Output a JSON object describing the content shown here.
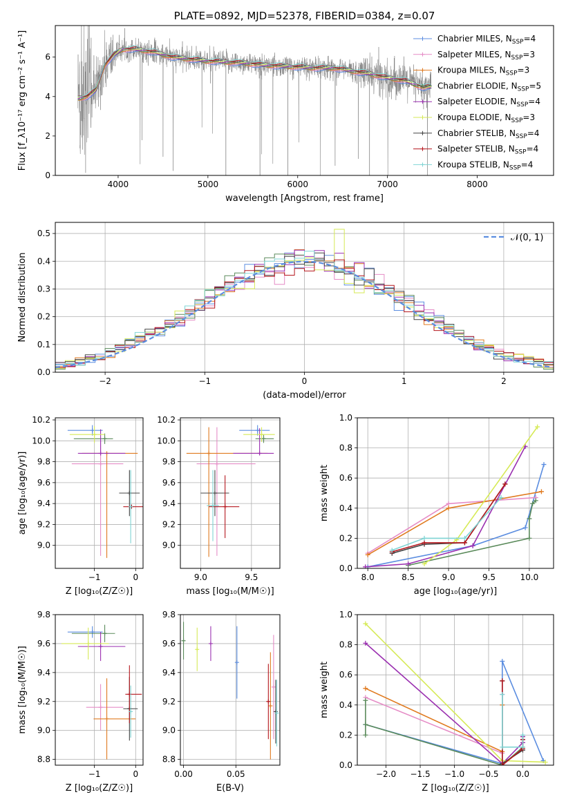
{
  "colors": {
    "Chabrier MILES": "#5b8de0",
    "Salpeter MILES": "#e58cc6",
    "Kroupa MILES": "#e07a1f",
    "Chabrier ELODIE": "#5a8a5a",
    "Salpeter ELODIE": "#9a2fb0",
    "Kroupa ELODIE": "#d6ea56",
    "Chabrier STELIB": "#444444",
    "Salpeter STELIB": "#b5161d",
    "Kroupa STELIB": "#7fd4d4",
    "observed": "#808080",
    "normal": "#5b8de0"
  },
  "chart_data": [
    {
      "panel": "spectrum",
      "type": "line",
      "title": "PLATE=0892, MJD=52378, FIBERID=0384, z=0.07",
      "xlabel": "wavelength [Angstrom, rest frame]",
      "ylabel": "Flux [f_λ10⁻¹⁷ erg cm⁻² s⁻¹ A⁻¹]",
      "xlim": [
        3300,
        8850
      ],
      "ylim": [
        0,
        7.6
      ],
      "xticks": [
        "4000",
        "5000",
        "6000",
        "7000",
        "8000"
      ],
      "yticks": [
        "0",
        "2",
        "4",
        "6"
      ],
      "grid": false,
      "legend_position": "upper right",
      "legend": [
        {
          "label": "Chabrier MILES, N",
          "sub": "SSP",
          "tail": "=4"
        },
        {
          "label": "Salpeter MILES, N",
          "sub": "SSP",
          "tail": "=3"
        },
        {
          "label": "Kroupa MILES, N",
          "sub": "SSP",
          "tail": "=3"
        },
        {
          "label": "Chabrier ELODIE, N",
          "sub": "SSP",
          "tail": "=5"
        },
        {
          "label": "Salpeter ELODIE, N",
          "sub": "SSP",
          "tail": "=4"
        },
        {
          "label": "Kroupa ELODIE, N",
          "sub": "SSP",
          "tail": "=3"
        },
        {
          "label": "Chabrier STELIB, N",
          "sub": "SSP",
          "tail": "=4"
        },
        {
          "label": "Salpeter STELIB, N",
          "sub": "SSP",
          "tail": "=4"
        },
        {
          "label": "Kroupa STELIB, N",
          "sub": "SSP",
          "tail": "=4"
        }
      ],
      "continuum": {
        "x": [
          3550,
          3650,
          3750,
          3850,
          3950,
          4050,
          4200,
          4400,
          4600,
          4800,
          5000,
          5200,
          5400,
          5600,
          5800,
          6000,
          6200,
          6400,
          6600,
          6800,
          7000,
          7200,
          7400,
          7500
        ],
        "y": [
          3.9,
          4.0,
          4.3,
          5.6,
          6.1,
          6.4,
          6.4,
          6.25,
          6.0,
          5.9,
          5.8,
          5.75,
          5.7,
          5.6,
          5.55,
          5.5,
          5.45,
          5.45,
          5.3,
          5.15,
          4.95,
          4.8,
          4.45,
          4.5
        ]
      },
      "observed_range": [
        3550,
        7490
      ]
    },
    {
      "panel": "residuals",
      "type": "area",
      "xlabel": "(data-model)/error",
      "ylabel": "Normed distribution",
      "xlim": [
        -2.5,
        2.5
      ],
      "ylim": [
        0,
        0.54
      ],
      "xticks": [
        "−2",
        "−1",
        "0",
        "1",
        "2"
      ],
      "yticks": [
        "0.0",
        "0.1",
        "0.2",
        "0.3",
        "0.4",
        "0.5"
      ],
      "grid": true,
      "legend_position": "upper right",
      "legend": [
        "𝒩(0, 1)"
      ],
      "bins": 50
    },
    {
      "panel": "age-vs-Z",
      "type": "scatter",
      "xlabel": "Z [log₁₀(Z/Z☉)]",
      "ylabel": "age  [log₁₀(age/yr)]",
      "xlim": [
        -1.95,
        0.18
      ],
      "ylim": [
        8.78,
        10.22
      ],
      "xticks": [
        "−1",
        "0"
      ],
      "yticks": [
        "9.0",
        "9.2",
        "9.4",
        "9.6",
        "9.8",
        "10.0",
        "10.2"
      ],
      "grid": true,
      "points": [
        {
          "model": "Chabrier MILES",
          "x": -1.05,
          "xerr": [
            0.6,
            0.25
          ],
          "y": 10.1,
          "yerr": [
            0.05,
            0.05
          ]
        },
        {
          "model": "Salpeter MILES",
          "x": -0.85,
          "xerr": [
            0.7,
            0.55
          ],
          "y": 9.78,
          "yerr": [
            0.88,
            0.22
          ]
        },
        {
          "model": "Kroupa MILES",
          "x": -0.7,
          "xerr": [
            0.6,
            0.75
          ],
          "y": 9.88,
          "yerr": [
            1.0,
            0.0
          ]
        },
        {
          "model": "Chabrier ELODIE",
          "x": -0.75,
          "xerr": [
            0.75,
            0.2
          ],
          "y": 10.02,
          "yerr": [
            0.05,
            0.05
          ]
        },
        {
          "model": "Salpeter ELODIE",
          "x": -0.85,
          "xerr": [
            0.55,
            0.6
          ],
          "y": 9.88,
          "yerr": [
            0.0,
            0.23
          ]
        },
        {
          "model": "Kroupa ELODIE",
          "x": -1.0,
          "xerr": [
            0.6,
            0.25
          ],
          "y": 10.06,
          "yerr": [
            0.08,
            0.08
          ]
        },
        {
          "model": "Chabrier STELIB",
          "x": -0.15,
          "xerr": [
            0.25,
            0.25
          ],
          "y": 9.5,
          "yerr": [
            0.22,
            0.22
          ]
        },
        {
          "model": "Salpeter STELIB",
          "x": -0.1,
          "xerr": [
            0.2,
            0.3
          ],
          "y": 9.37,
          "yerr": [
            0.0,
            0.0
          ]
        },
        {
          "model": "Kroupa STELIB",
          "x": -0.12,
          "xerr": [
            0.0,
            0.0
          ],
          "y": 9.37,
          "yerr": [
            0.35,
            0.35
          ]
        }
      ]
    },
    {
      "panel": "age-vs-mass",
      "type": "scatter",
      "xlabel": "mass [log₁₀(M/M☉)]",
      "ylabel": "",
      "xlim": [
        8.8,
        9.78
      ],
      "ylim": [
        8.78,
        10.22
      ],
      "xticks": [
        "9.0",
        "9.5"
      ],
      "yticks": [
        "9.0",
        "9.2",
        "9.4",
        "9.6",
        "9.8",
        "10.0",
        "10.2"
      ],
      "grid": true,
      "points": [
        {
          "model": "Chabrier MILES",
          "x": 9.56,
          "xerr": [
            0.18,
            0.12
          ],
          "y": 10.1,
          "yerr": [
            0.05,
            0.05
          ]
        },
        {
          "model": "Salpeter MILES",
          "x": 9.16,
          "xerr": [
            0.2,
            0.38
          ],
          "y": 9.78,
          "yerr": [
            0.88,
            0.35
          ]
        },
        {
          "model": "Kroupa MILES",
          "x": 9.08,
          "xerr": [
            0.22,
            0.58
          ],
          "y": 9.88,
          "yerr": [
            0.99,
            0.25
          ]
        },
        {
          "model": "Chabrier ELODIE",
          "x": 9.62,
          "xerr": [
            0.08,
            0.1
          ],
          "y": 10.02,
          "yerr": [
            0.04,
            0.04
          ]
        },
        {
          "model": "Salpeter ELODIE",
          "x": 9.58,
          "xerr": [
            0.26,
            0.14
          ],
          "y": 9.88,
          "yerr": [
            0.0,
            0.24
          ]
        },
        {
          "model": "Kroupa ELODIE",
          "x": 9.6,
          "xerr": [
            0.18,
            0.13
          ],
          "y": 10.06,
          "yerr": [
            0.07,
            0.07
          ]
        },
        {
          "model": "Chabrier STELIB",
          "x": 9.14,
          "xerr": [
            0.14,
            0.14
          ],
          "y": 9.5,
          "yerr": [
            0.22,
            0.22
          ]
        },
        {
          "model": "Salpeter STELIB",
          "x": 9.24,
          "xerr": [
            0.16,
            0.14
          ],
          "y": 9.37,
          "yerr": [
            0.3,
            0.3
          ]
        },
        {
          "model": "Kroupa STELIB",
          "x": 9.12,
          "xerr": [
            0.06,
            0.06
          ],
          "y": 9.38,
          "yerr": [
            0.34,
            0.34
          ]
        }
      ]
    },
    {
      "panel": "mass-weight-vs-age",
      "type": "line",
      "xlabel": "age  [log₁₀(age/yr)]",
      "ylabel": "mass weight",
      "xlim": [
        7.87,
        10.3
      ],
      "ylim": [
        0,
        1.0
      ],
      "xticks": [
        "8.0",
        "8.5",
        "9.0",
        "9.5",
        "10.0"
      ],
      "yticks": [
        "0.0",
        "0.2",
        "0.4",
        "0.6",
        "0.8",
        "1.0"
      ],
      "grid": true,
      "series": [
        {
          "model": "Chabrier MILES",
          "x": [
            8.0,
            9.3,
            9.95,
            10.18
          ],
          "y": [
            0.01,
            0.15,
            0.27,
            0.69
          ]
        },
        {
          "model": "Salpeter MILES",
          "x": [
            8.0,
            9.0,
            10.08
          ],
          "y": [
            0.1,
            0.43,
            0.47
          ]
        },
        {
          "model": "Kroupa MILES",
          "x": [
            8.0,
            9.0,
            10.15
          ],
          "y": [
            0.09,
            0.4,
            0.51
          ]
        },
        {
          "model": "Chabrier ELODIE",
          "x": [
            8.5,
            10.0,
            10.0,
            10.04,
            10.08
          ],
          "y": [
            0.02,
            0.2,
            0.33,
            0.43,
            0.45
          ]
        },
        {
          "model": "Salpeter ELODIE",
          "x": [
            7.97,
            8.5,
            9.3,
            9.95
          ],
          "y": [
            0.01,
            0.03,
            0.15,
            0.81
          ]
        },
        {
          "model": "Kroupa ELODIE",
          "x": [
            8.7,
            9.1,
            10.1
          ],
          "y": [
            0.03,
            0.19,
            0.94
          ]
        },
        {
          "model": "Chabrier STELIB",
          "x": [
            8.3,
            8.7,
            9.2,
            9.7
          ],
          "y": [
            0.1,
            0.16,
            0.17,
            0.56
          ]
        },
        {
          "model": "Salpeter STELIB",
          "x": [
            8.3,
            8.7,
            9.2,
            9.7
          ],
          "y": [
            0.11,
            0.17,
            0.17,
            0.56
          ]
        },
        {
          "model": "Kroupa STELIB",
          "x": [
            8.3,
            8.7,
            9.2,
            9.65
          ],
          "y": [
            0.12,
            0.2,
            0.2,
            0.47
          ]
        }
      ]
    },
    {
      "panel": "mass-vs-Z",
      "type": "scatter",
      "xlabel": "Z [log₁₀(Z/Z☉)]",
      "ylabel": "mass [log₁₀(M/M☉)]",
      "xlim": [
        -1.95,
        0.18
      ],
      "ylim": [
        8.76,
        9.8
      ],
      "xticks": [
        "−1",
        "0"
      ],
      "yticks": [
        "8.8",
        "9.0",
        "9.2",
        "9.4",
        "9.6",
        "9.8"
      ],
      "grid": true,
      "points": [
        {
          "model": "Chabrier MILES",
          "x": -1.05,
          "xerr": [
            0.6,
            0.25
          ],
          "y": 9.68,
          "yerr": [
            0.04,
            0.04
          ]
        },
        {
          "model": "Salpeter MILES",
          "x": -0.85,
          "xerr": [
            0.35,
            0.55
          ],
          "y": 9.16,
          "yerr": [
            0.16,
            0.16
          ]
        },
        {
          "model": "Kroupa MILES",
          "x": -0.7,
          "xerr": [
            0.32,
            0.7
          ],
          "y": 9.08,
          "yerr": [
            0.28,
            0.28
          ]
        },
        {
          "model": "Chabrier ELODIE",
          "x": -0.75,
          "xerr": [
            0.8,
            0.25
          ],
          "y": 9.67,
          "yerr": [
            0.06,
            0.06
          ]
        },
        {
          "model": "Salpeter ELODIE",
          "x": -0.85,
          "xerr": [
            0.55,
            0.6
          ],
          "y": 9.58,
          "yerr": [
            0.1,
            0.1
          ]
        },
        {
          "model": "Kroupa ELODIE",
          "x": -1.15,
          "xerr": [
            0.65,
            0.5
          ],
          "y": 9.6,
          "yerr": [
            0.11,
            0.11
          ]
        },
        {
          "model": "Chabrier STELIB",
          "x": -0.15,
          "xerr": [
            0.15,
            0.2
          ],
          "y": 9.15,
          "yerr": [
            0.22,
            0.22
          ]
        },
        {
          "model": "Salpeter STELIB",
          "x": -0.15,
          "xerr": [
            0.1,
            0.3
          ],
          "y": 9.25,
          "yerr": [
            0.2,
            0.2
          ]
        },
        {
          "model": "Kroupa STELIB",
          "x": -0.12,
          "xerr": [
            0.0,
            0.0
          ],
          "y": 9.13,
          "yerr": [
            0.18,
            0.18
          ]
        }
      ]
    },
    {
      "panel": "mass-vs-ebv",
      "type": "scatter",
      "xlabel": "E(B-V)",
      "ylabel": "",
      "xlim": [
        -0.003,
        0.092
      ],
      "ylim": [
        8.76,
        9.8
      ],
      "xticks": [
        "0.00",
        "0.05"
      ],
      "yticks": [
        "8.8",
        "9.0",
        "9.2",
        "9.4",
        "9.6",
        "9.8"
      ],
      "grid": true,
      "points": [
        {
          "model": "Chabrier MILES",
          "x": 0.051,
          "xerr": [
            0,
            0
          ],
          "y": 9.47,
          "yerr": [
            0.25,
            0.25
          ]
        },
        {
          "model": "Salpeter MILES",
          "x": 0.086,
          "xerr": [
            0,
            0
          ],
          "y": 9.3,
          "yerr": [
            0.36,
            0.36
          ]
        },
        {
          "model": "Kroupa MILES",
          "x": 0.083,
          "xerr": [
            0,
            0
          ],
          "y": 9.17,
          "yerr": [
            0.37,
            0.37
          ]
        },
        {
          "model": "Chabrier ELODIE",
          "x": 0.0,
          "xerr": [
            0,
            0
          ],
          "y": 9.62,
          "yerr": [
            0.13,
            0.13
          ]
        },
        {
          "model": "Salpeter ELODIE",
          "x": 0.026,
          "xerr": [
            0,
            0
          ],
          "y": 9.6,
          "yerr": [
            0.12,
            0.12
          ]
        },
        {
          "model": "Kroupa ELODIE",
          "x": 0.013,
          "xerr": [
            0,
            0
          ],
          "y": 9.56,
          "yerr": [
            0.15,
            0.15
          ]
        },
        {
          "model": "Chabrier STELIB",
          "x": 0.088,
          "xerr": [
            0,
            0
          ],
          "y": 9.13,
          "yerr": [
            0.22,
            0.22
          ]
        },
        {
          "model": "Salpeter STELIB",
          "x": 0.081,
          "xerr": [
            0,
            0
          ],
          "y": 9.2,
          "yerr": [
            0.26,
            0.26
          ]
        },
        {
          "model": "Kroupa STELIB",
          "x": 0.089,
          "xerr": [
            0,
            0
          ],
          "y": 9.12,
          "yerr": [
            0.23,
            0.23
          ]
        }
      ]
    },
    {
      "panel": "mass-weight-vs-Z",
      "type": "line",
      "xlabel": "Z [log₁₀(Z/Z☉)]",
      "ylabel": "mass weight",
      "xlim": [
        -2.42,
        0.45
      ],
      "ylim": [
        0,
        1.0
      ],
      "xticks": [
        "−2.0",
        "−1.5",
        "−1.0",
        "−0.5",
        "0.0"
      ],
      "yticks": [
        "0.0",
        "0.2",
        "0.4",
        "0.6",
        "0.8",
        "1.0"
      ],
      "grid": true,
      "series": [
        {
          "model": "Chabrier MILES",
          "x": [
            -2.3,
            -0.3,
            -0.3,
            0.3
          ],
          "y": [
            0.27,
            0.01,
            0.69,
            0.03
          ]
        },
        {
          "model": "Salpeter MILES",
          "x": [
            -2.3,
            -0.3,
            -0.3
          ],
          "y": [
            0.45,
            0.08,
            0.47
          ]
        },
        {
          "model": "Kroupa MILES",
          "x": [
            -2.3,
            -0.3,
            -0.3
          ],
          "y": [
            0.51,
            0.09,
            0.4
          ]
        },
        {
          "model": "Chabrier ELODIE",
          "x": [
            -2.3,
            -2.3,
            -2.3,
            -0.3,
            0.0,
            0.0
          ],
          "y": [
            0.43,
            0.2,
            0.27,
            0.0,
            0.12,
            0.19
          ]
        },
        {
          "model": "Salpeter ELODIE",
          "x": [
            -2.3,
            -0.3,
            0.0,
            0.0
          ],
          "y": [
            0.81,
            0.01,
            0.15,
            0.19
          ]
        },
        {
          "model": "Kroupa ELODIE",
          "x": [
            -2.3,
            -0.3,
            0.33
          ],
          "y": [
            0.94,
            0.03,
            0.02
          ]
        },
        {
          "model": "Chabrier STELIB",
          "x": [
            -0.3,
            -0.3,
            0.0,
            0.0
          ],
          "y": [
            0.56,
            0.01,
            0.1,
            0.17
          ]
        },
        {
          "model": "Salpeter STELIB",
          "x": [
            -0.3,
            -0.3,
            0.0,
            0.0
          ],
          "y": [
            0.56,
            0.0,
            0.11,
            0.17
          ]
        },
        {
          "model": "Kroupa STELIB",
          "x": [
            -0.3,
            -0.3,
            0.0,
            0.0
          ],
          "y": [
            0.47,
            0.12,
            0.12,
            0.2
          ]
        }
      ]
    }
  ]
}
